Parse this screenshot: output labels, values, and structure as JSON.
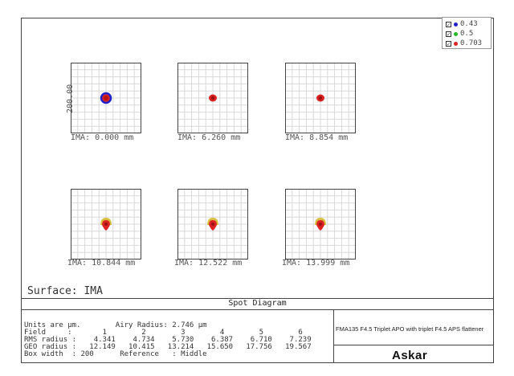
{
  "legend": [
    {
      "label": "0.43",
      "color": "#2222cc"
    },
    {
      "label": "0.5",
      "color": "#22bb22"
    },
    {
      "label": "0.703",
      "color": "#dd2222"
    }
  ],
  "scale_label": "200.00",
  "fields": [
    {
      "ima": "IMA: 0.000 mm",
      "spot": "blue-red"
    },
    {
      "ima": "IMA: 6.260 mm",
      "spot": "red"
    },
    {
      "ima": "IMA: 8.854 mm",
      "spot": "red"
    },
    {
      "ima": "IMA: 10.844 mm",
      "spot": "mixed"
    },
    {
      "ima": "IMA: 12.522 mm",
      "spot": "mixed"
    },
    {
      "ima": "IMA: 13.999 mm",
      "spot": "mixed"
    }
  ],
  "surface": "Surface: IMA",
  "title": "Spot Diagram",
  "info": {
    "units": "Units are µm.        Airy Radius: 2.746 µm",
    "field_row": "Field     :       1        2        3        4        5        6",
    "rms_row": "RMS radius :    4.341    4.734    5.730    6.387    6.710    7.239",
    "geo_row": "GEO radius :   12.149   10.415   13.214   15.650   17.756   19.567",
    "box_row": "Box width  : 200      Reference   : Middle"
  },
  "system_name": "FMA135 F4.5 Triplet APO with triplet F4.5 APS flattener",
  "brand": "Askar"
}
